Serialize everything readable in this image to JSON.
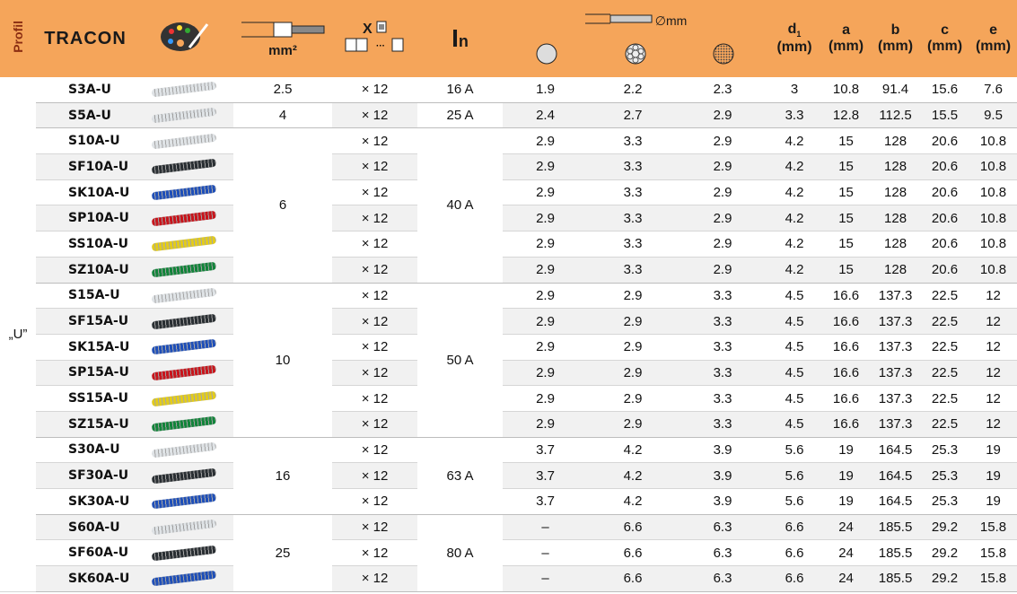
{
  "header": {
    "profile": "Profil",
    "brand": "TRACON",
    "section": "mm²",
    "count": "X",
    "current_symbol": "I",
    "current_sub": "n",
    "diameter": "∅mm",
    "d1": "d",
    "d1_sub": "1",
    "d1_unit": "(mm)",
    "a": "a",
    "a_unit": "(mm)",
    "b": "b",
    "b_unit": "(mm)",
    "c": "c",
    "c_unit": "(mm)",
    "e": "e",
    "e_unit": "(mm)"
  },
  "table": {
    "profile": "„U”",
    "groups": [
      {
        "section": "2.5",
        "current": "16 A",
        "rows": [
          {
            "type": "S3A-U",
            "color": "#dfe3e6",
            "count": "× 12",
            "d_solid": "1.9",
            "d_stranded": "2.2",
            "d_fine": "2.3",
            "d1": "3",
            "a": "10.8",
            "b": "91.4",
            "c": "15.6",
            "e": "7.6"
          }
        ]
      },
      {
        "section": "4",
        "current": "25 A",
        "rows": [
          {
            "type": "S5A-U",
            "color": "#dfe3e6",
            "count": "× 12",
            "d_solid": "2.4",
            "d_stranded": "2.7",
            "d_fine": "2.9",
            "d1": "3.3",
            "a": "12.8",
            "b": "112.5",
            "c": "15.5",
            "e": "9.5"
          }
        ]
      },
      {
        "section": "6",
        "current": "40 A",
        "rows": [
          {
            "type": "S10A-U",
            "color": "#dfe3e6",
            "count": "× 12",
            "d_solid": "2.9",
            "d_stranded": "3.3",
            "d_fine": "2.9",
            "d1": "4.2",
            "a": "15",
            "b": "128",
            "c": "20.6",
            "e": "10.8"
          },
          {
            "type": "SF10A-U",
            "color": "#2a2f33",
            "count": "× 12",
            "d_solid": "2.9",
            "d_stranded": "3.3",
            "d_fine": "2.9",
            "d1": "4.2",
            "a": "15",
            "b": "128",
            "c": "20.6",
            "e": "10.8"
          },
          {
            "type": "SK10A-U",
            "color": "#1f4fb8",
            "count": "× 12",
            "d_solid": "2.9",
            "d_stranded": "3.3",
            "d_fine": "2.9",
            "d1": "4.2",
            "a": "15",
            "b": "128",
            "c": "20.6",
            "e": "10.8"
          },
          {
            "type": "SP10A-U",
            "color": "#c8151c",
            "count": "× 12",
            "d_solid": "2.9",
            "d_stranded": "3.3",
            "d_fine": "2.9",
            "d1": "4.2",
            "a": "15",
            "b": "128",
            "c": "20.6",
            "e": "10.8"
          },
          {
            "type": "SS10A-U",
            "color": "#e3cc1a",
            "count": "× 12",
            "d_solid": "2.9",
            "d_stranded": "3.3",
            "d_fine": "2.9",
            "d1": "4.2",
            "a": "15",
            "b": "128",
            "c": "20.6",
            "e": "10.8"
          },
          {
            "type": "SZ10A-U",
            "color": "#12843a",
            "count": "× 12",
            "d_solid": "2.9",
            "d_stranded": "3.3",
            "d_fine": "2.9",
            "d1": "4.2",
            "a": "15",
            "b": "128",
            "c": "20.6",
            "e": "10.8"
          }
        ]
      },
      {
        "section": "10",
        "current": "50 A",
        "rows": [
          {
            "type": "S15A-U",
            "color": "#dfe3e6",
            "count": "× 12",
            "d_solid": "2.9",
            "d_stranded": "2.9",
            "d_fine": "3.3",
            "d1": "4.5",
            "a": "16.6",
            "b": "137.3",
            "c": "22.5",
            "e": "12"
          },
          {
            "type": "SF15A-U",
            "color": "#2a2f33",
            "count": "× 12",
            "d_solid": "2.9",
            "d_stranded": "2.9",
            "d_fine": "3.3",
            "d1": "4.5",
            "a": "16.6",
            "b": "137.3",
            "c": "22.5",
            "e": "12"
          },
          {
            "type": "SK15A-U",
            "color": "#1f4fb8",
            "count": "× 12",
            "d_solid": "2.9",
            "d_stranded": "2.9",
            "d_fine": "3.3",
            "d1": "4.5",
            "a": "16.6",
            "b": "137.3",
            "c": "22.5",
            "e": "12"
          },
          {
            "type": "SP15A-U",
            "color": "#c8151c",
            "count": "× 12",
            "d_solid": "2.9",
            "d_stranded": "2.9",
            "d_fine": "3.3",
            "d1": "4.5",
            "a": "16.6",
            "b": "137.3",
            "c": "22.5",
            "e": "12"
          },
          {
            "type": "SS15A-U",
            "color": "#e3cc1a",
            "count": "× 12",
            "d_solid": "2.9",
            "d_stranded": "2.9",
            "d_fine": "3.3",
            "d1": "4.5",
            "a": "16.6",
            "b": "137.3",
            "c": "22.5",
            "e": "12"
          },
          {
            "type": "SZ15A-U",
            "color": "#12843a",
            "count": "× 12",
            "d_solid": "2.9",
            "d_stranded": "2.9",
            "d_fine": "3.3",
            "d1": "4.5",
            "a": "16.6",
            "b": "137.3",
            "c": "22.5",
            "e": "12"
          }
        ]
      },
      {
        "section": "16",
        "current": "63 A",
        "rows": [
          {
            "type": "S30A-U",
            "color": "#dfe3e6",
            "count": "× 12",
            "d_solid": "3.7",
            "d_stranded": "4.2",
            "d_fine": "3.9",
            "d1": "5.6",
            "a": "19",
            "b": "164.5",
            "c": "25.3",
            "e": "19"
          },
          {
            "type": "SF30A-U",
            "color": "#2a2f33",
            "count": "× 12",
            "d_solid": "3.7",
            "d_stranded": "4.2",
            "d_fine": "3.9",
            "d1": "5.6",
            "a": "19",
            "b": "164.5",
            "c": "25.3",
            "e": "19"
          },
          {
            "type": "SK30A-U",
            "color": "#1f4fb8",
            "count": "× 12",
            "d_solid": "3.7",
            "d_stranded": "4.2",
            "d_fine": "3.9",
            "d1": "5.6",
            "a": "19",
            "b": "164.5",
            "c": "25.3",
            "e": "19"
          }
        ]
      },
      {
        "section": "25",
        "current": "80 A",
        "rows": [
          {
            "type": "S60A-U",
            "color": "#dfe3e6",
            "count": "× 12",
            "d_solid": "–",
            "d_stranded": "6.6",
            "d_fine": "6.3",
            "d1": "6.6",
            "a": "24",
            "b": "185.5",
            "c": "29.2",
            "e": "15.8"
          },
          {
            "type": "SF60A-U",
            "color": "#2a2f33",
            "count": "× 12",
            "d_solid": "–",
            "d_stranded": "6.6",
            "d_fine": "6.3",
            "d1": "6.6",
            "a": "24",
            "b": "185.5",
            "c": "29.2",
            "e": "15.8"
          },
          {
            "type": "SK60A-U",
            "color": "#1f4fb8",
            "count": "× 12",
            "d_solid": "–",
            "d_stranded": "6.6",
            "d_fine": "6.3",
            "d1": "6.6",
            "a": "24",
            "b": "185.5",
            "c": "29.2",
            "e": "15.8"
          }
        ]
      }
    ]
  }
}
